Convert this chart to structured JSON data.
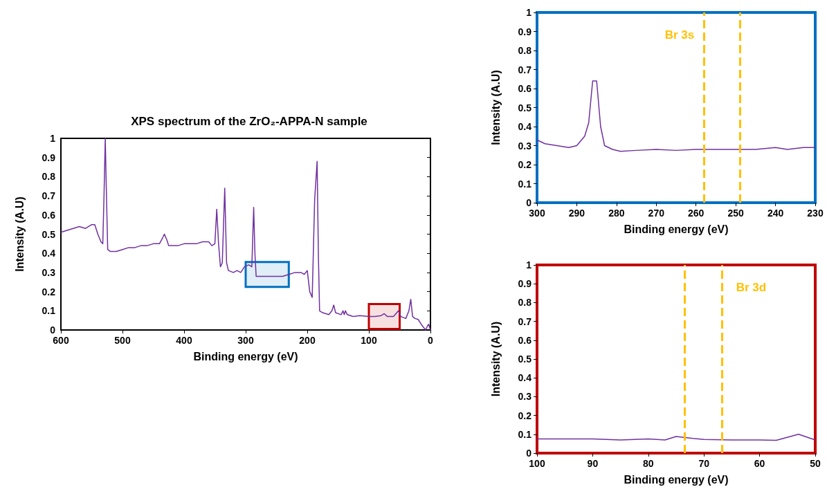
{
  "chart_data": [
    {
      "type": "line",
      "title": "XPS spectrum of the ZrO₂-APPA-N sample",
      "xlabel": "Binding energy (eV)",
      "ylabel": "Intensity (A.U)",
      "xlim": [
        600,
        0
      ],
      "xticks": [
        600,
        500,
        400,
        300,
        200,
        100,
        0
      ],
      "ylim": [
        0,
        1
      ],
      "yticks": [
        0,
        0.1,
        0.2,
        0.3,
        0.4,
        0.5,
        0.6,
        0.7,
        0.8,
        0.9,
        1
      ],
      "grid": false,
      "marker": "none",
      "series": [
        {
          "color": "#7030a0",
          "x": [
            600,
            590,
            580,
            570,
            560,
            550,
            545,
            540,
            535,
            532,
            530,
            528,
            526,
            524,
            520,
            510,
            500,
            490,
            480,
            470,
            460,
            450,
            440,
            435,
            432,
            428,
            425,
            410,
            400,
            390,
            380,
            370,
            360,
            355,
            350,
            347,
            344,
            341,
            338,
            334,
            331,
            328,
            320,
            314,
            308,
            302,
            295,
            290,
            287,
            285,
            283,
            270,
            250,
            240,
            230,
            220,
            210,
            205,
            200,
            196,
            192,
            188,
            184,
            182,
            180,
            175,
            165,
            160,
            157,
            154,
            145,
            142,
            140,
            138,
            135,
            125,
            115,
            100,
            90,
            80,
            75,
            70,
            60,
            52,
            48,
            40,
            35,
            32,
            29,
            25,
            20,
            15,
            8,
            5,
            3,
            0
          ],
          "values": [
            0.51,
            0.52,
            0.53,
            0.54,
            0.53,
            0.55,
            0.55,
            0.5,
            0.46,
            0.45,
            0.7,
            1,
            0.7,
            0.42,
            0.41,
            0.41,
            0.42,
            0.43,
            0.43,
            0.44,
            0.44,
            0.45,
            0.45,
            0.48,
            0.5,
            0.47,
            0.44,
            0.44,
            0.45,
            0.45,
            0.45,
            0.46,
            0.46,
            0.44,
            0.45,
            0.63,
            0.45,
            0.33,
            0.35,
            0.74,
            0.35,
            0.31,
            0.3,
            0.31,
            0.3,
            0.33,
            0.34,
            0.33,
            0.64,
            0.4,
            0.28,
            0.28,
            0.28,
            0.28,
            0.29,
            0.3,
            0.3,
            0.29,
            0.31,
            0.2,
            0.17,
            0.68,
            0.88,
            0.4,
            0.1,
            0.09,
            0.08,
            0.1,
            0.13,
            0.09,
            0.08,
            0.1,
            0.08,
            0.1,
            0.08,
            0.07,
            0.075,
            0.07,
            0.07,
            0.075,
            0.085,
            0.07,
            0.07,
            0.1,
            0.07,
            0.06,
            0.1,
            0.16,
            0.07,
            0.06,
            0.055,
            0.03,
            0,
            0.02,
            0.03,
            0
          ]
        }
      ],
      "bands": [
        {
          "axis": "x",
          "from": 300,
          "to": 230,
          "color": "#0070c0"
        },
        {
          "axis": "x",
          "from": 100,
          "to": 50,
          "color": "#c00000"
        }
      ]
    },
    {
      "type": "line",
      "xlabel": "Binding energy (eV)",
      "ylabel": "Intensity (A.U)",
      "xlim": [
        300,
        230
      ],
      "xticks": [
        300,
        290,
        280,
        270,
        260,
        250,
        240,
        230
      ],
      "ylim": [
        0,
        1
      ],
      "yticks": [
        0,
        0.1,
        0.2,
        0.3,
        0.4,
        0.5,
        0.6,
        0.7,
        0.8,
        0.9,
        1
      ],
      "grid": false,
      "marker": "none",
      "series": [
        {
          "color": "#7030a0",
          "x": [
            300,
            298,
            295,
            292,
            290,
            288,
            287,
            286,
            285,
            284,
            283,
            281,
            279,
            275,
            270,
            265,
            260,
            255,
            250,
            245,
            240,
            237,
            233,
            230
          ],
          "values": [
            0.33,
            0.31,
            0.3,
            0.29,
            0.3,
            0.35,
            0.42,
            0.64,
            0.64,
            0.4,
            0.3,
            0.28,
            0.27,
            0.275,
            0.28,
            0.275,
            0.28,
            0.28,
            0.28,
            0.28,
            0.29,
            0.28,
            0.29,
            0.29
          ]
        }
      ],
      "ref_lines": [
        {
          "axis": "x",
          "value": 258,
          "label": "Br 3s",
          "color": "#ffc000",
          "line_style": "dashed"
        },
        {
          "axis": "x",
          "value": 249,
          "color": "#ffc000",
          "line_style": "dashed"
        }
      ]
    },
    {
      "type": "line",
      "xlabel": "Binding energy (eV)",
      "ylabel": "Intensity (A.U)",
      "xlim": [
        100,
        50
      ],
      "xticks": [
        100,
        90,
        80,
        70,
        60,
        50
      ],
      "ylim": [
        0,
        1
      ],
      "yticks": [
        0,
        0.1,
        0.2,
        0.3,
        0.4,
        0.5,
        0.6,
        0.7,
        0.8,
        0.9,
        1
      ],
      "grid": false,
      "marker": "none",
      "series": [
        {
          "color": "#7030a0",
          "x": [
            100,
            95,
            90,
            85,
            80,
            77,
            75,
            72,
            70,
            65,
            60,
            57,
            53,
            50
          ],
          "values": [
            0.075,
            0.075,
            0.075,
            0.07,
            0.075,
            0.07,
            0.088,
            0.078,
            0.073,
            0.07,
            0.07,
            0.068,
            0.1,
            0.07
          ]
        }
      ],
      "ref_lines": [
        {
          "axis": "x",
          "value": 73.5,
          "color": "#ffc000",
          "line_style": "dashed"
        },
        {
          "axis": "x",
          "value": 66.7,
          "label": "Br 3d",
          "color": "#ffc000",
          "line_style": "dashed"
        }
      ]
    }
  ]
}
